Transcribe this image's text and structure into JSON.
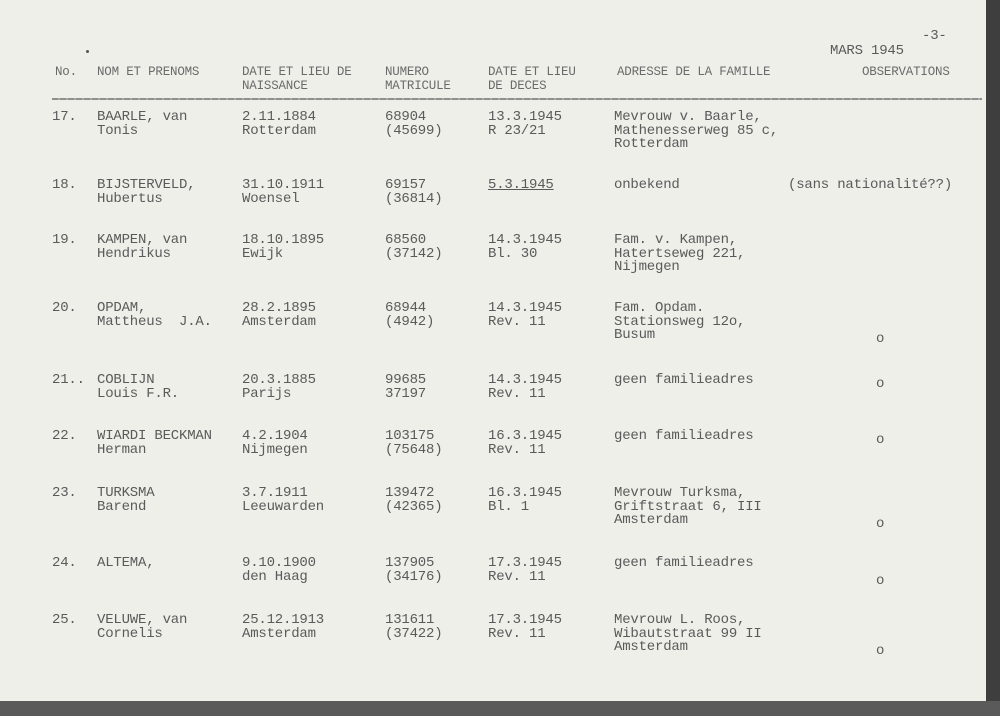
{
  "page_number": "-3-",
  "month": "MARS 1945",
  "headers": {
    "no": "No.",
    "name": "NOM ET PRENOMS",
    "birth": [
      "DATE ET LIEU DE",
      "NAISSANCE"
    ],
    "matricule": [
      "NUMERO",
      "MATRICULE"
    ],
    "death": [
      "DATE ET LIEU",
      "DE DECES"
    ],
    "address": "ADRESSE DE LA FAMILLE",
    "observations": "OBSERVATIONS"
  },
  "rows": [
    {
      "no": "17.",
      "name": [
        "BAARLE, van",
        "Tonis"
      ],
      "birth": [
        "2.11.1884",
        "Rotterdam"
      ],
      "matricule": [
        "68904",
        "(45699)"
      ],
      "death": [
        "13.3.1945",
        "R 23/21"
      ],
      "address": [
        "Mevrouw v. Baarle,",
        "Mathenesserweg 85 c,",
        "Rotterdam"
      ],
      "observation": ""
    },
    {
      "no": "18.",
      "name": [
        "BIJSTERVELD,",
        "Hubertus"
      ],
      "birth": [
        "31.10.1911",
        "Woensel"
      ],
      "matricule": [
        "69157",
        "(36814)"
      ],
      "death": [
        "5.3.1945"
      ],
      "address": [
        "onbekend"
      ],
      "observation": "(sans nationalité??)"
    },
    {
      "no": "19.",
      "name": [
        "KAMPEN, van",
        "Hendrikus"
      ],
      "birth": [
        "18.10.1895",
        "Ewijk"
      ],
      "matricule": [
        "68560",
        "(37142)"
      ],
      "death": [
        "14.3.1945",
        "Bl. 30"
      ],
      "address": [
        "Fam. v. Kampen,",
        "Hatertseweg 221,",
        "Nijmegen"
      ],
      "observation": ""
    },
    {
      "no": "20.",
      "name": [
        "OPDAM,",
        "Mattheus  J.A."
      ],
      "birth": [
        "28.2.1895",
        "Amsterdam"
      ],
      "matricule": [
        "68944",
        "(4942)"
      ],
      "death": [
        "14.3.1945",
        "Rev. 11"
      ],
      "address": [
        "Fam. Opdam.",
        "Stationsweg 12o,",
        "Busum"
      ],
      "observation": "o"
    },
    {
      "no": "21..",
      "name": [
        "COBLIJN",
        "Louis F.R."
      ],
      "birth": [
        "20.3.1885",
        "Parijs"
      ],
      "matricule": [
        "99685",
        "37197"
      ],
      "death": [
        "14.3.1945",
        "Rev. 11"
      ],
      "address": [
        "geen familieadres"
      ],
      "observation": "o"
    },
    {
      "no": "22.",
      "name": [
        "WIARDI BECKMAN",
        "Herman"
      ],
      "birth": [
        "4.2.1904",
        "Nijmegen"
      ],
      "matricule": [
        "103175",
        "(75648)"
      ],
      "death": [
        "16.3.1945",
        "Rev. 11"
      ],
      "address": [
        "geen familieadres"
      ],
      "observation": "o"
    },
    {
      "no": "23.",
      "name": [
        "TURKSMA",
        "Barend"
      ],
      "birth": [
        "3.7.1911",
        "Leeuwarden"
      ],
      "matricule": [
        "139472",
        "(42365)"
      ],
      "death": [
        "16.3.1945",
        "Bl. 1"
      ],
      "address": [
        "Mevrouw Turksma,",
        "Griftstraat 6, III",
        "Amsterdam"
      ],
      "observation": "o"
    },
    {
      "no": "24.",
      "name": [
        "ALTEMA,"
      ],
      "birth": [
        "9.10.1900",
        "den Haag"
      ],
      "matricule": [
        "137905",
        "(34176)"
      ],
      "death": [
        "17.3.1945",
        "Rev. 11"
      ],
      "address": [
        "geen familieadres"
      ],
      "observation": "o"
    },
    {
      "no": "25.",
      "name": [
        "VELUWE, van",
        "Cornelis"
      ],
      "birth": [
        "25.12.1913",
        "Amsterdam"
      ],
      "matricule": [
        "131611",
        "(37422)"
      ],
      "death": [
        "17.3.1945",
        "Rev. 11"
      ],
      "address": [
        "Mevrouw L. Roos,",
        "Wibautstraat 99 II",
        "Amsterdam"
      ],
      "observation": "o"
    }
  ]
}
